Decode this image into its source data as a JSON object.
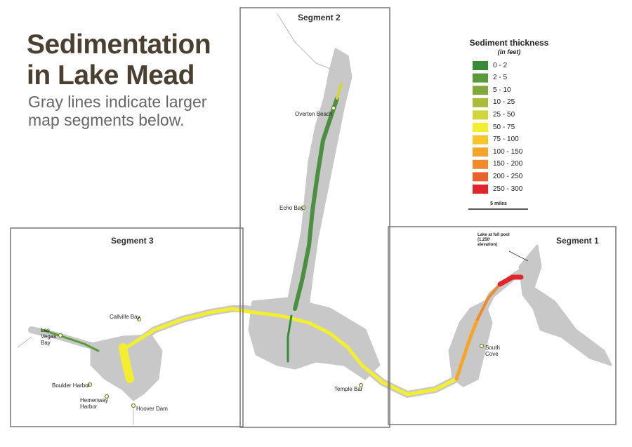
{
  "header": {
    "title": "Sedimentation in Lake Mead",
    "subtitle": "Gray lines indicate larger map segments below."
  },
  "legend": {
    "title": "Sediment thickness",
    "subtitle": "(in feet)",
    "items": [
      {
        "label": "0 - 2",
        "color": "#3a8a3a"
      },
      {
        "label": "2 - 5",
        "color": "#5a9a3a"
      },
      {
        "label": "5 - 10",
        "color": "#84a83a"
      },
      {
        "label": "10 - 25",
        "color": "#a8bc38"
      },
      {
        "label": "25 - 50",
        "color": "#d2d63a"
      },
      {
        "label": "50 - 75",
        "color": "#f4ee30"
      },
      {
        "label": "75 - 100",
        "color": "#f7c62a"
      },
      {
        "label": "100 - 150",
        "color": "#f5a52a"
      },
      {
        "label": "150 - 200",
        "color": "#f08a2a"
      },
      {
        "label": "200 - 250",
        "color": "#e8622a"
      },
      {
        "label": "250 - 300",
        "color": "#e0262a"
      }
    ]
  },
  "scale": "5 miles",
  "segments": [
    "Segment 1",
    "Segment 2",
    "Segment 3"
  ],
  "places": {
    "overton_beach": "Overton Beach",
    "echo_bay": "Echo Bay",
    "callville_bay": "Callville Bay",
    "las_vegas_bay": "Las Vegas Bay",
    "boulder_harbor": "Boulder Harbor",
    "hemenway_harbor": "Hemenway Harbor",
    "hoover_dam": "Hoover Dam",
    "temple_bar": "Temple Bar",
    "south_cove": "South Cove",
    "full_pool": "Lake at full pool (1,250' elevation)"
  }
}
